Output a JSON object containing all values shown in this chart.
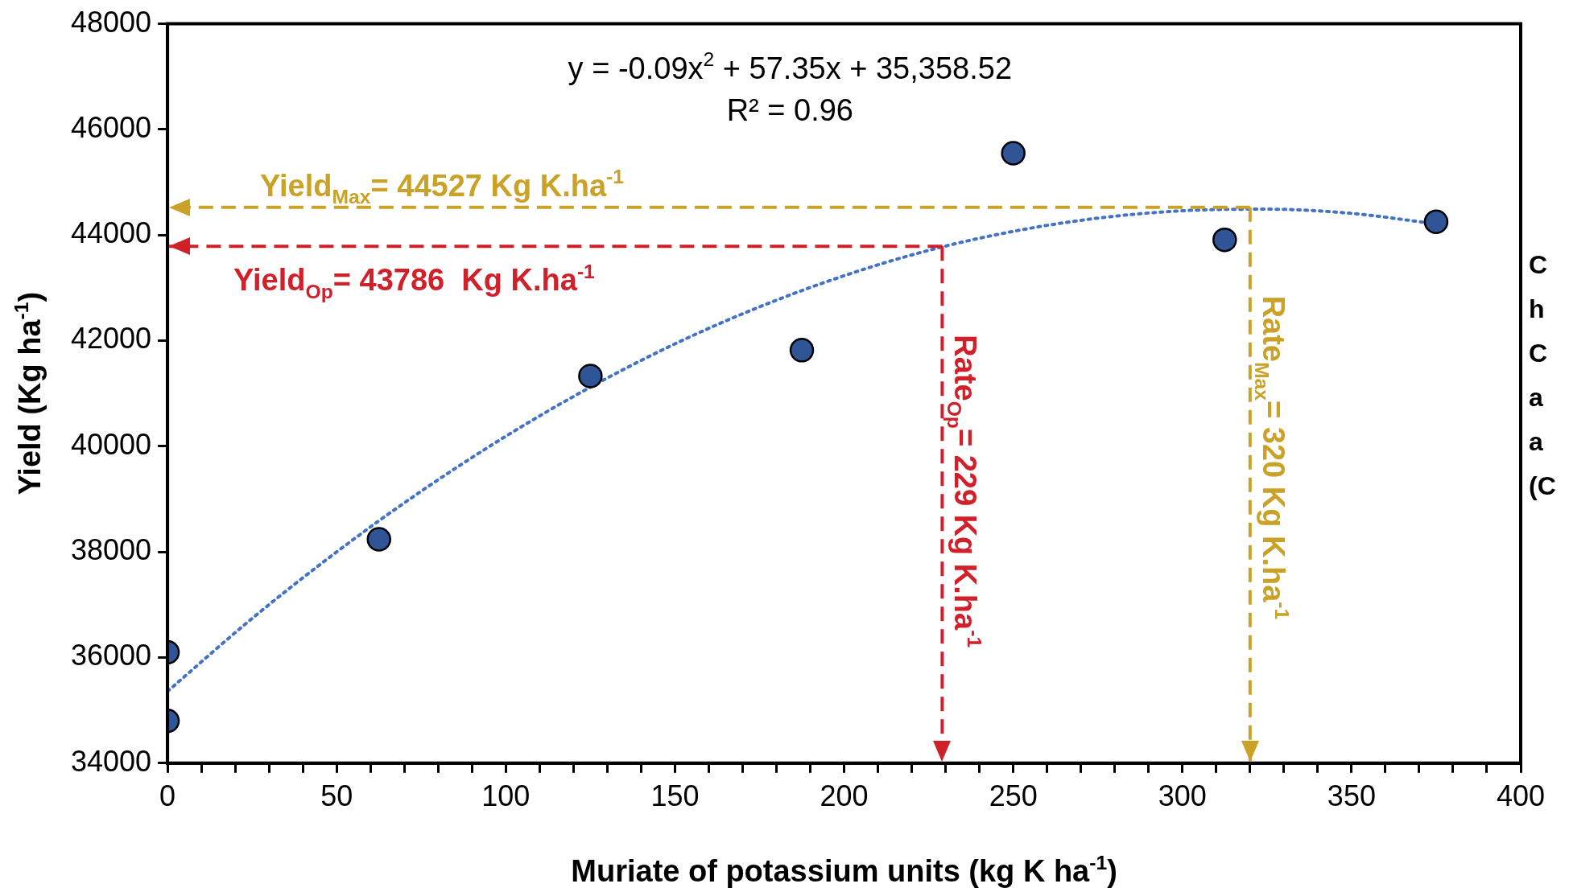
{
  "chart_data": {
    "type": "scatter",
    "xlabel": "Muriate of potassium units (kg K ha$^{-1}$)",
    "ylabel": "Yield (Kg ha$^{-1}$)",
    "xlim": [
      0,
      400
    ],
    "ylim": [
      34000,
      48000
    ],
    "xticks": [
      0,
      {
        "value": 10,
        "label": null
      },
      {
        "value": 20,
        "label": null
      },
      {
        "value": 30,
        "label": null
      },
      {
        "value": 40,
        "label": null
      },
      50,
      {
        "value": 60,
        "label": null
      },
      {
        "value": 70,
        "label": null
      },
      {
        "value": 80,
        "label": null
      },
      {
        "value": 90,
        "label": null
      },
      100,
      {
        "value": 110,
        "label": null
      },
      {
        "value": 120,
        "label": null
      },
      {
        "value": 130,
        "label": null
      },
      {
        "value": 140,
        "label": null
      },
      150,
      {
        "value": 160,
        "label": null
      },
      {
        "value": 170,
        "label": null
      },
      {
        "value": 180,
        "label": null
      },
      {
        "value": 190,
        "label": null
      },
      200,
      {
        "value": 210,
        "label": null
      },
      {
        "value": 220,
        "label": null
      },
      {
        "value": 230,
        "label": null
      },
      {
        "value": 240,
        "label": null
      },
      250,
      {
        "value": 260,
        "label": null
      },
      {
        "value": 270,
        "label": null
      },
      {
        "value": 280,
        "label": null
      },
      {
        "value": 290,
        "label": null
      },
      300,
      {
        "value": 310,
        "label": null
      },
      {
        "value": 320,
        "label": null
      },
      {
        "value": 330,
        "label": null
      },
      {
        "value": 340,
        "label": null
      },
      350,
      {
        "value": 360,
        "label": null
      },
      {
        "value": 370,
        "label": null
      },
      {
        "value": 380,
        "label": null
      },
      {
        "value": 390,
        "label": null
      },
      400
    ],
    "yticks": [
      34000,
      36000,
      38000,
      40000,
      42000,
      44000,
      46000,
      48000
    ],
    "grid": false,
    "legend": false,
    "marker": "circle",
    "series": [
      {
        "type": "line",
        "color": "#4472c4",
        "line_style": "dotted",
        "marker": "none",
        "x": [
          0,
          25,
          50,
          75,
          100,
          125,
          150,
          175,
          200,
          225,
          250,
          275,
          300,
          325,
          350,
          375
        ],
        "values": [
          35360,
          36740,
          38000,
          39150,
          40190,
          41120,
          41940,
          42640,
          43230,
          43710,
          44070,
          44320,
          44460,
          44490,
          44410,
          44210
        ]
      },
      {
        "color": "#2f5597",
        "x": [
          0,
          0,
          62.5,
          125,
          187.5,
          250,
          312.5,
          375
        ],
        "values": [
          36100,
          34800,
          38240,
          41330,
          41820,
          45550,
          43910,
          44250
        ]
      }
    ],
    "ref_lines": [
      {
        "axis": "y",
        "value": 44527,
        "label": "Yield$_{Max}$= 44527 Kg K.ha$^{-1}$",
        "color": "#c9a227",
        "line_style": "dashed"
      },
      {
        "axis": "x",
        "value": 320,
        "label": "Rate$_{Max}$= 320 Kg K.ha$^{-1}$",
        "color": "#c9a227",
        "line_style": "dashed"
      },
      {
        "axis": "y",
        "value": 43786,
        "label": "Yield$_{Op}$= 43786  Kg K.ha$^{-1}$",
        "color": "#d0202a",
        "line_style": "dashed"
      },
      {
        "axis": "x",
        "value": 229,
        "label": "Rate$_{Op}$= 229 Kg K.ha$^{-1}$",
        "color": "#d0202a",
        "line_style": "dashed"
      }
    ],
    "annotations": [
      "y = -0.09x$^{2}$ + 57.35x + 35,358.52",
      "R² = 0.96",
      "C",
      "h",
      "C",
      "a",
      "a",
      "(C"
    ]
  }
}
